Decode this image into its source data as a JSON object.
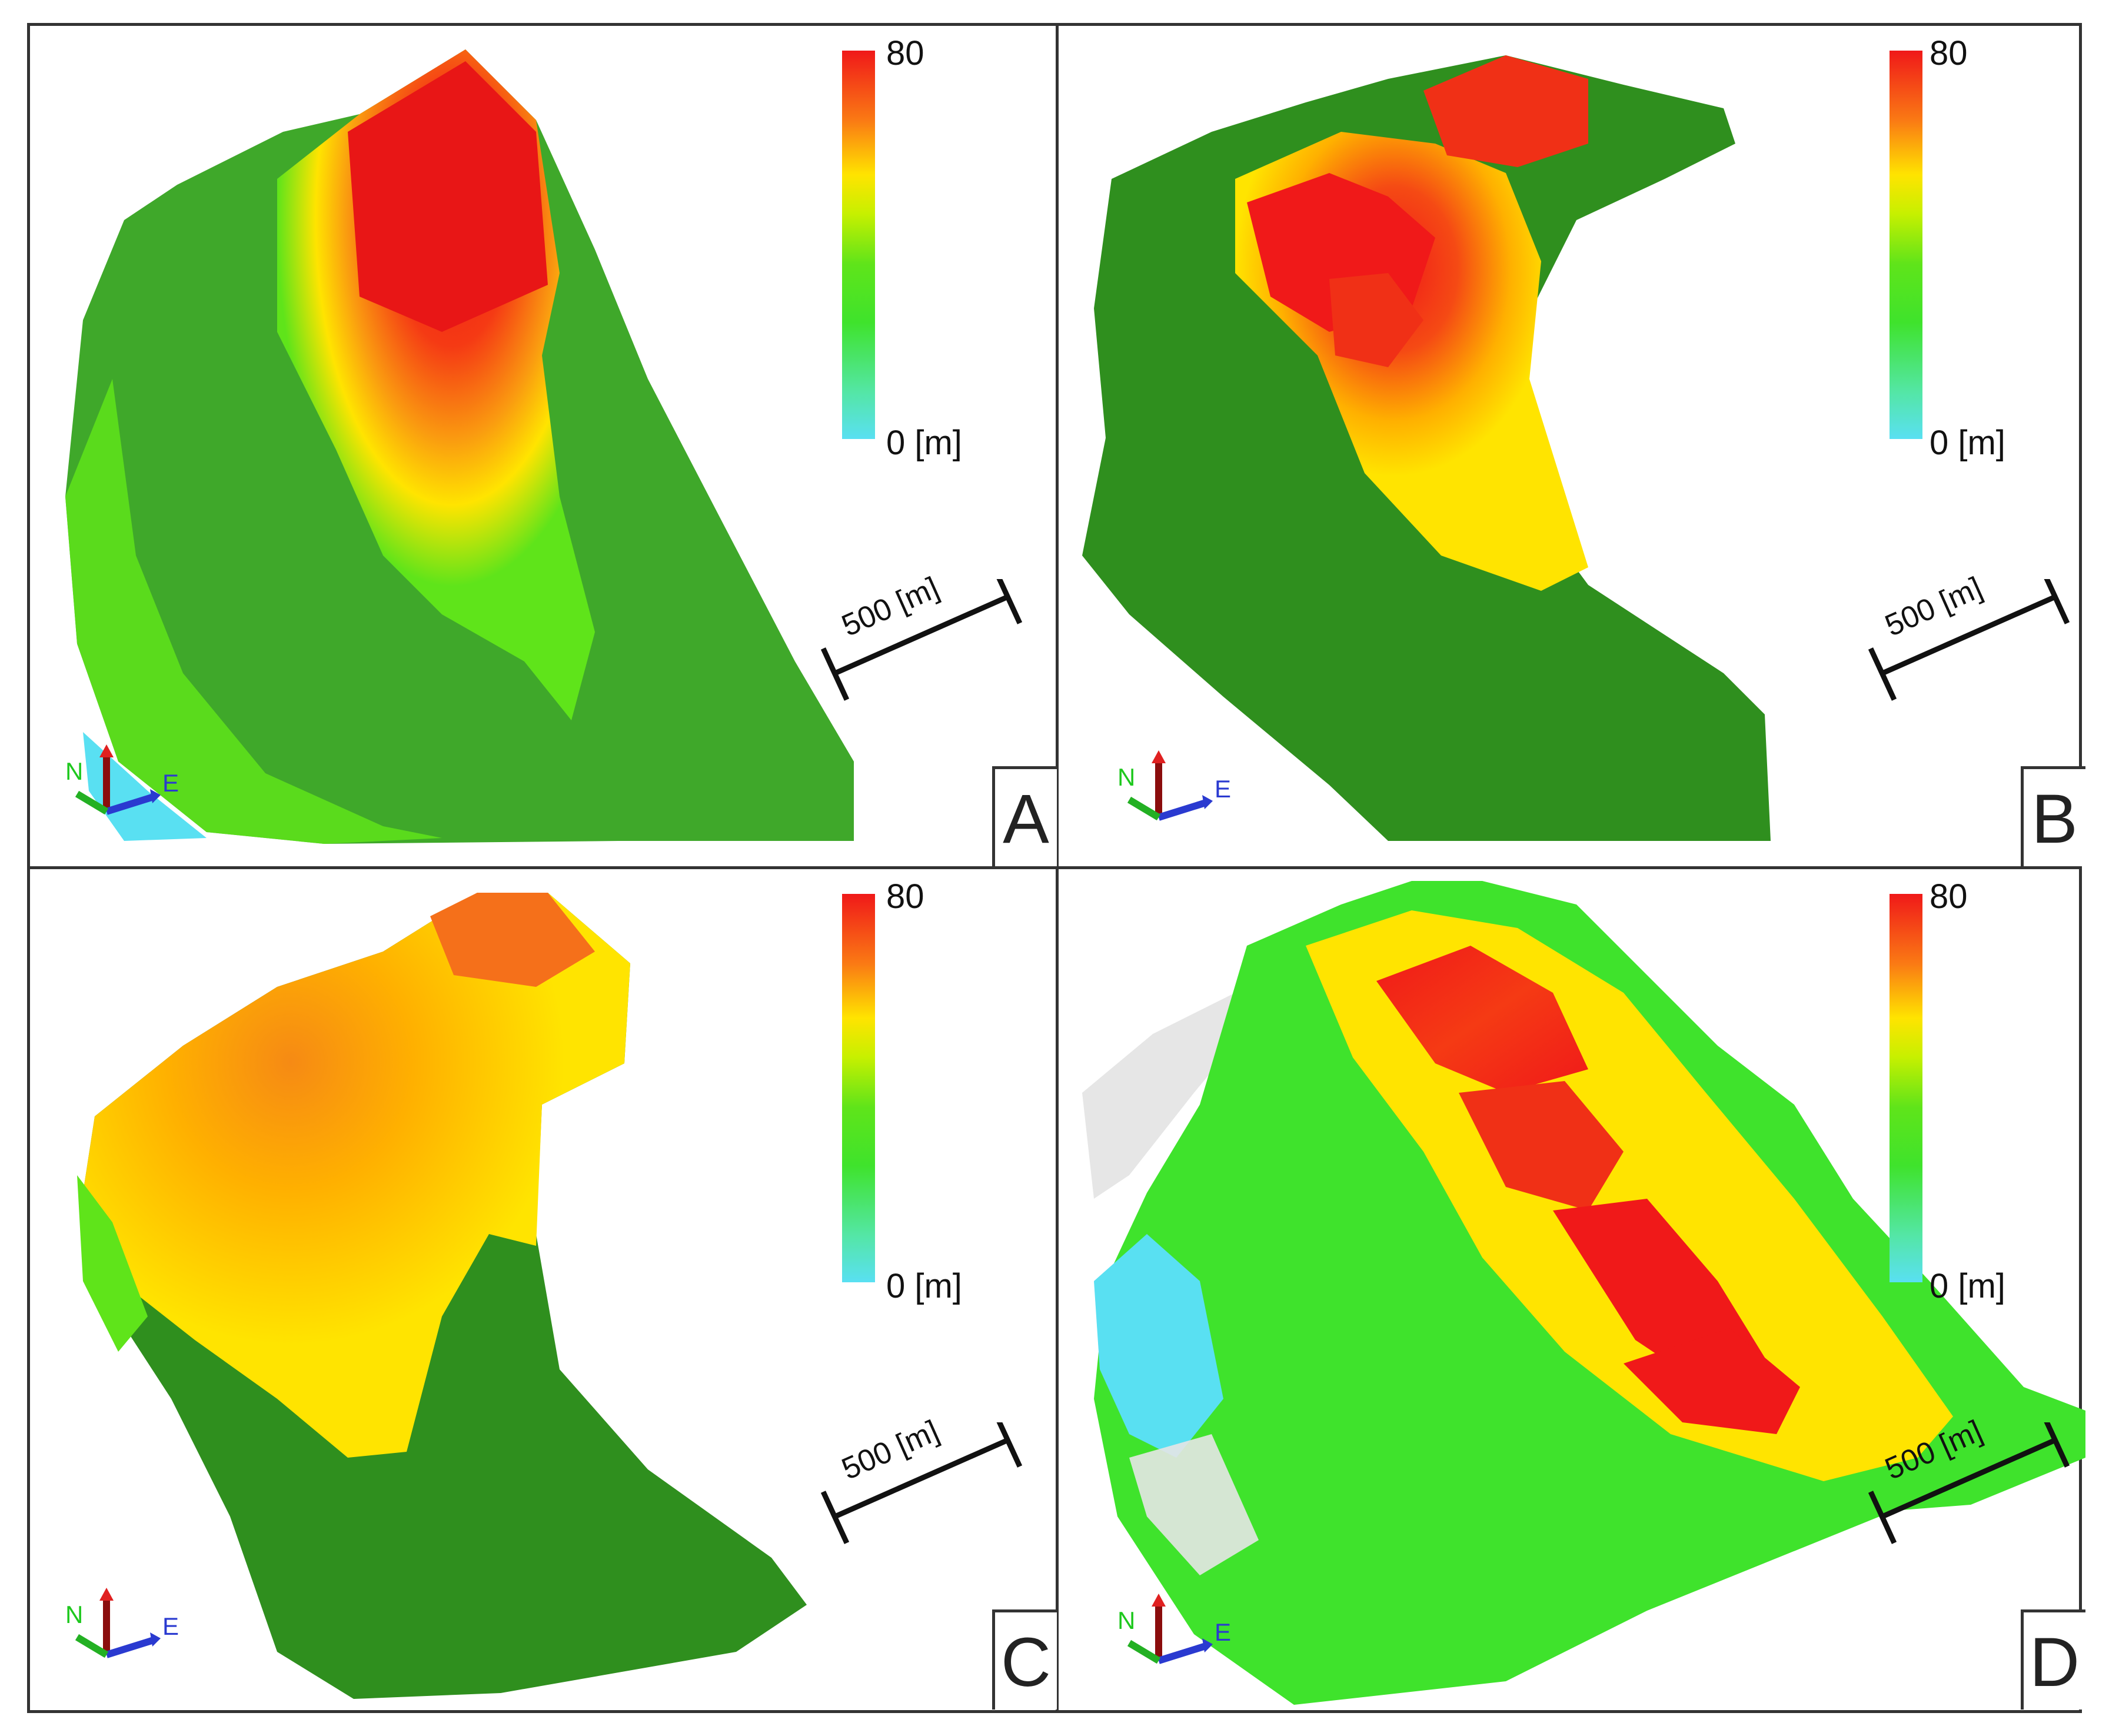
{
  "panels": [
    {
      "id": "A",
      "legend": {
        "max": "80",
        "min": "0 [m]"
      },
      "scale": "500 [m]",
      "axis": {
        "n": "N",
        "e": "E"
      }
    },
    {
      "id": "B",
      "legend": {
        "max": "80",
        "min": "0 [m]"
      },
      "scale": "500 [m]",
      "axis": {
        "n": "N",
        "e": "E"
      }
    },
    {
      "id": "C",
      "legend": {
        "max": "80",
        "min": "0 [m]"
      },
      "scale": "500 [m]",
      "axis": {
        "n": "N",
        "e": "E"
      }
    },
    {
      "id": "D",
      "legend": {
        "max": "80",
        "min": "0 [m]"
      },
      "scale": "500 [m]",
      "axis": {
        "n": "N",
        "e": "E"
      }
    }
  ],
  "colors": {
    "high": "#f01919",
    "mid": "#ffe400",
    "low_green": "#3fe32c",
    "low": "#59e0f2",
    "dark_green": "#2f8f1e"
  }
}
